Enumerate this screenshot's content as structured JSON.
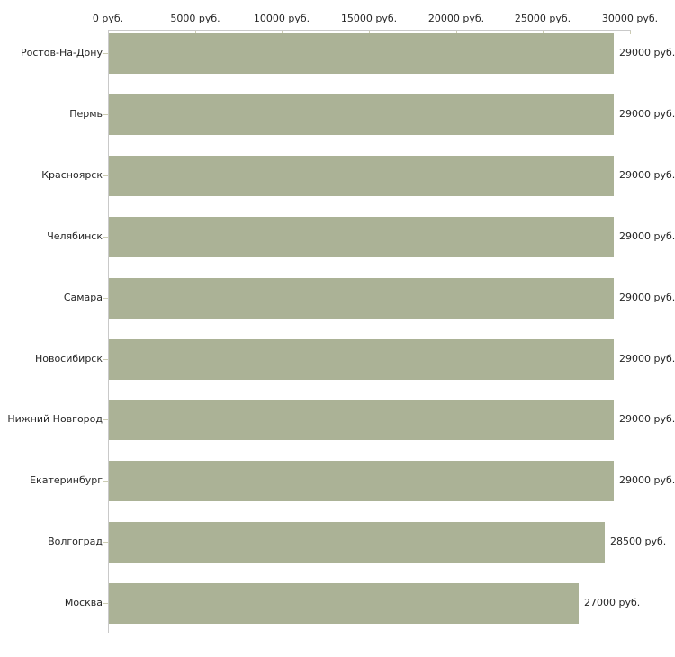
{
  "chart_data": {
    "type": "bar",
    "orientation": "horizontal",
    "title": "",
    "categories": [
      "Ростов-На-Дону",
      "Пермь",
      "Красноярск",
      "Челябинск",
      "Самара",
      "Новосибирск",
      "Нижний Новгород",
      "Екатеринбург",
      "Волгоград",
      "Москва"
    ],
    "values": [
      29000,
      29000,
      29000,
      29000,
      29000,
      29000,
      29000,
      29000,
      28500,
      27000
    ],
    "value_labels": [
      "29000 руб.",
      "29000 руб.",
      "29000 руб.",
      "29000 руб.",
      "29000 руб.",
      "29000 руб.",
      "29000 руб.",
      "29000 руб.",
      "28500 руб.",
      "27000 руб."
    ],
    "xlabel": "",
    "ylabel": "",
    "xlim": [
      0,
      30000
    ],
    "x_ticks": [
      0,
      5000,
      10000,
      15000,
      20000,
      25000,
      30000
    ],
    "x_tick_labels": [
      "0 руб.",
      "5000 руб.",
      "10000 руб.",
      "15000 руб.",
      "20000 руб.",
      "25000 руб.",
      "30000 руб."
    ],
    "x_axis_position": "top",
    "grid": false,
    "legend_position": "none",
    "colors": {
      "bar": "#abb296",
      "axis_line": "#c9c9c9",
      "tick": "#ccccb3",
      "text": "#262626",
      "background": "#ffffff"
    }
  }
}
